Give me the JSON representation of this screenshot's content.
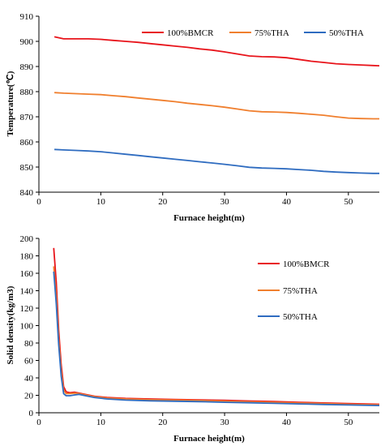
{
  "colors": {
    "bmcr": "#e8141b",
    "tha75": "#f07f2e",
    "tha50": "#2f6cc0"
  },
  "chart_data": [
    {
      "type": "line",
      "title": "",
      "xlabel": "Furnace height(m)",
      "ylabel": "Temperature(℃)",
      "xlim": [
        0,
        55
      ],
      "ylim": [
        840,
        910
      ],
      "xticks": [
        "0",
        "10",
        "20",
        "30",
        "40",
        "50"
      ],
      "yticks": [
        "840",
        "850",
        "860",
        "870",
        "880",
        "890",
        "900",
        "910"
      ],
      "legend": "top",
      "series": [
        {
          "name": "100%BMCR",
          "color": "#e8141b",
          "x": [
            2.5,
            4,
            6,
            8,
            10,
            12,
            14,
            16,
            18,
            20,
            22,
            24,
            26,
            28,
            30,
            32,
            34,
            36,
            38,
            40,
            42,
            44,
            46,
            48,
            50,
            52,
            54,
            55
          ],
          "y": [
            901.8,
            901.0,
            901.0,
            901.0,
            900.8,
            900.4,
            900.0,
            899.6,
            899.1,
            898.6,
            898.1,
            897.6,
            897.0,
            896.5,
            895.8,
            895.0,
            894.2,
            893.9,
            893.8,
            893.5,
            892.8,
            892.1,
            891.6,
            891.1,
            890.8,
            890.6,
            890.4,
            890.3
          ]
        },
        {
          "name": "75%THA",
          "color": "#f07f2e",
          "x": [
            2.5,
            4,
            6,
            8,
            10,
            12,
            14,
            16,
            18,
            20,
            22,
            24,
            26,
            28,
            30,
            32,
            34,
            36,
            38,
            40,
            42,
            44,
            46,
            48,
            50,
            52,
            54,
            55
          ],
          "y": [
            879.6,
            879.4,
            879.2,
            879.0,
            878.8,
            878.4,
            878.0,
            877.5,
            877.0,
            876.5,
            876.0,
            875.4,
            874.9,
            874.4,
            873.8,
            873.1,
            872.4,
            872.0,
            871.9,
            871.7,
            871.4,
            871.0,
            870.6,
            870.0,
            869.5,
            869.3,
            869.2,
            869.2
          ]
        },
        {
          "name": "50%THA",
          "color": "#2f6cc0",
          "x": [
            2.5,
            4,
            6,
            8,
            10,
            12,
            14,
            16,
            18,
            20,
            22,
            24,
            26,
            28,
            30,
            32,
            34,
            36,
            38,
            40,
            42,
            44,
            46,
            48,
            50,
            52,
            54,
            55
          ],
          "y": [
            857.0,
            856.8,
            856.6,
            856.4,
            856.1,
            855.6,
            855.1,
            854.6,
            854.1,
            853.6,
            853.1,
            852.6,
            852.1,
            851.6,
            851.1,
            850.5,
            849.9,
            849.6,
            849.5,
            849.3,
            849.0,
            848.7,
            848.3,
            848.0,
            847.8,
            847.6,
            847.5,
            847.5
          ]
        }
      ]
    },
    {
      "type": "line",
      "title": "",
      "xlabel": "Furnace height(m)",
      "ylabel": "Solid density(kg/m3)",
      "xlim": [
        0,
        55
      ],
      "ylim": [
        0,
        200
      ],
      "xticks": [
        "0",
        "10",
        "20",
        "30",
        "40",
        "50"
      ],
      "yticks": [
        "0",
        "20",
        "40",
        "60",
        "80",
        "100",
        "120",
        "140",
        "160",
        "180",
        "200"
      ],
      "legend": "right",
      "series": [
        {
          "name": "100%BMCR",
          "color": "#e8141b",
          "x": [
            2.4,
            2.8,
            3.2,
            3.6,
            4.0,
            4.4,
            5.0,
            5.8,
            6.5,
            7.5,
            9,
            11,
            14,
            18,
            22,
            26,
            30,
            34,
            38,
            42,
            46,
            50,
            55
          ],
          "y": [
            189,
            150,
            95,
            55,
            30,
            24,
            23,
            23.5,
            22.5,
            21,
            19,
            17.5,
            16.5,
            15.8,
            15.3,
            14.8,
            14.2,
            13.5,
            12.8,
            12.0,
            11.3,
            10.5,
            9.8
          ]
        },
        {
          "name": "75%THA",
          "color": "#f07f2e",
          "x": [
            2.4,
            2.8,
            3.2,
            3.6,
            4.0,
            4.4,
            5.0,
            5.8,
            6.5,
            7.5,
            9,
            11,
            14,
            18,
            22,
            26,
            30,
            34,
            38,
            42,
            46,
            50,
            55
          ],
          "y": [
            168,
            135,
            85,
            48,
            26,
            22,
            22,
            22.5,
            22,
            20.5,
            18.5,
            16.8,
            15.8,
            15.0,
            14.5,
            14.0,
            13.3,
            12.6,
            12.0,
            11.2,
            10.5,
            9.8,
            9.0
          ]
        },
        {
          "name": "50%THA",
          "color": "#2f6cc0",
          "x": [
            2.4,
            2.8,
            3.2,
            3.6,
            4.0,
            4.4,
            5.0,
            5.8,
            6.5,
            7.5,
            9,
            11,
            14,
            18,
            22,
            26,
            30,
            34,
            38,
            42,
            46,
            50,
            55
          ],
          "y": [
            162,
            125,
            78,
            42,
            22,
            19.5,
            19.5,
            20.5,
            21,
            19.5,
            17.5,
            15.8,
            14.5,
            13.7,
            13.2,
            12.7,
            12.0,
            11.4,
            10.8,
            10.1,
            9.5,
            8.9,
            8.3
          ]
        }
      ]
    }
  ]
}
